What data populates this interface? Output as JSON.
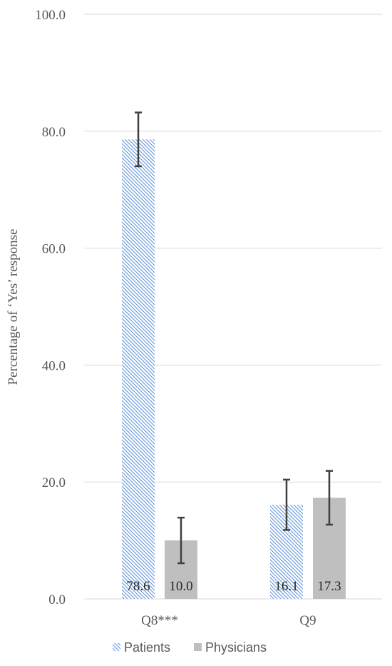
{
  "chart_data": {
    "type": "bar",
    "categories": [
      "Q8***",
      "Q9"
    ],
    "series": [
      {
        "name": "Patients",
        "values": [
          78.6,
          16.1
        ],
        "error": [
          4.6,
          4.3
        ],
        "fill": "hatch",
        "color": "#5b8fd6"
      },
      {
        "name": "Physicians",
        "values": [
          10.0,
          17.3
        ],
        "error": [
          3.9,
          4.6
        ],
        "fill": "solid",
        "color": "#bfbfbf"
      }
    ],
    "data_labels": [
      [
        "78.6",
        "16.1"
      ],
      [
        "10.0",
        "17.3"
      ]
    ],
    "y_ticks": [
      "0.0",
      "20.0",
      "40.0",
      "60.0",
      "80.0",
      "100.0"
    ],
    "ylabel": "Percentage of ‘Yes’ response",
    "xlabel": "",
    "ylim": [
      0,
      100
    ],
    "grid": true,
    "legend_position": "bottom",
    "colors": {
      "gridline": "#d9d9d9",
      "error_bar": "#404040",
      "axis_text": "#595959"
    }
  }
}
